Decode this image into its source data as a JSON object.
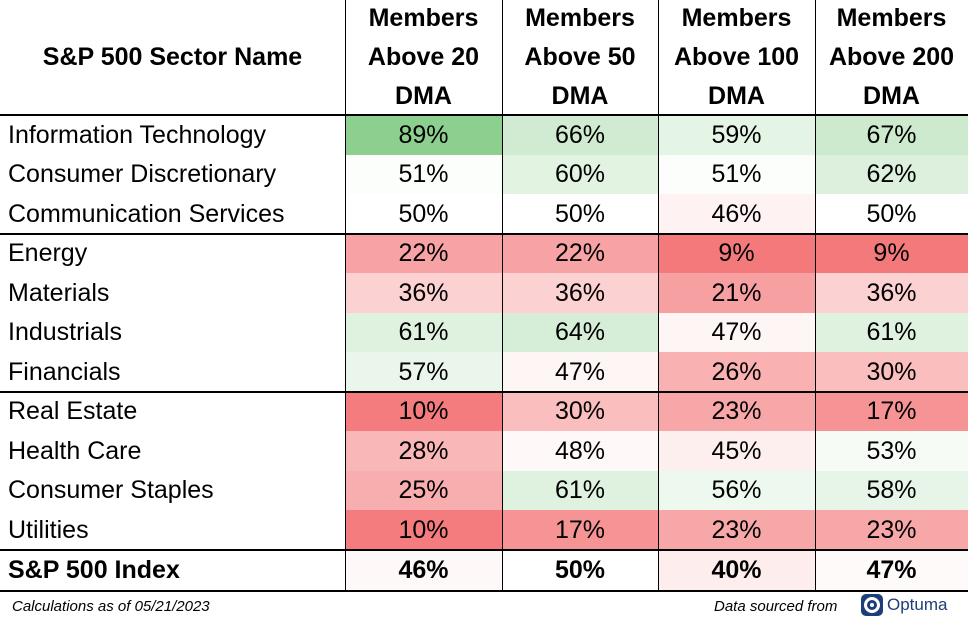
{
  "chart_data": {
    "type": "table",
    "header": {
      "sector": "S&P 500 Sector Name",
      "columns": [
        [
          "Members",
          "Above 20",
          "DMA"
        ],
        [
          "Members",
          "Above 50",
          "DMA"
        ],
        [
          "Members",
          "Above 100",
          "DMA"
        ],
        [
          "Members",
          "Above 200",
          "DMA"
        ]
      ]
    },
    "rows": [
      {
        "name": "Information Technology",
        "values": [
          "89%",
          "66%",
          "59%",
          "67%"
        ]
      },
      {
        "name": "Consumer Discretionary",
        "values": [
          "51%",
          "60%",
          "51%",
          "62%"
        ]
      },
      {
        "name": "Communication Services",
        "values": [
          "50%",
          "50%",
          "46%",
          "50%"
        ]
      },
      {
        "name": "Energy",
        "values": [
          "22%",
          "22%",
          "9%",
          "9%"
        ]
      },
      {
        "name": "Materials",
        "values": [
          "36%",
          "36%",
          "21%",
          "36%"
        ]
      },
      {
        "name": "Industrials",
        "values": [
          "61%",
          "64%",
          "47%",
          "61%"
        ]
      },
      {
        "name": "Financials",
        "values": [
          "57%",
          "47%",
          "26%",
          "30%"
        ]
      },
      {
        "name": "Real Estate",
        "values": [
          "10%",
          "30%",
          "23%",
          "17%"
        ]
      },
      {
        "name": "Health Care",
        "values": [
          "28%",
          "48%",
          "45%",
          "53%"
        ]
      },
      {
        "name": "Consumer Staples",
        "values": [
          "25%",
          "61%",
          "56%",
          "58%"
        ]
      },
      {
        "name": "Utilities",
        "values": [
          "10%",
          "17%",
          "23%",
          "23%"
        ]
      }
    ],
    "total": {
      "name": "S&P 500 Index",
      "values": [
        "46%",
        "50%",
        "40%",
        "47%"
      ]
    },
    "colors": {
      "high": "#8ccf8f",
      "mid": "#ffffff",
      "low": "#f4797b"
    }
  },
  "footer": {
    "note": "Calculations as of 05/21/2023",
    "source": "Data sourced from",
    "logo_text": "Optuma"
  }
}
